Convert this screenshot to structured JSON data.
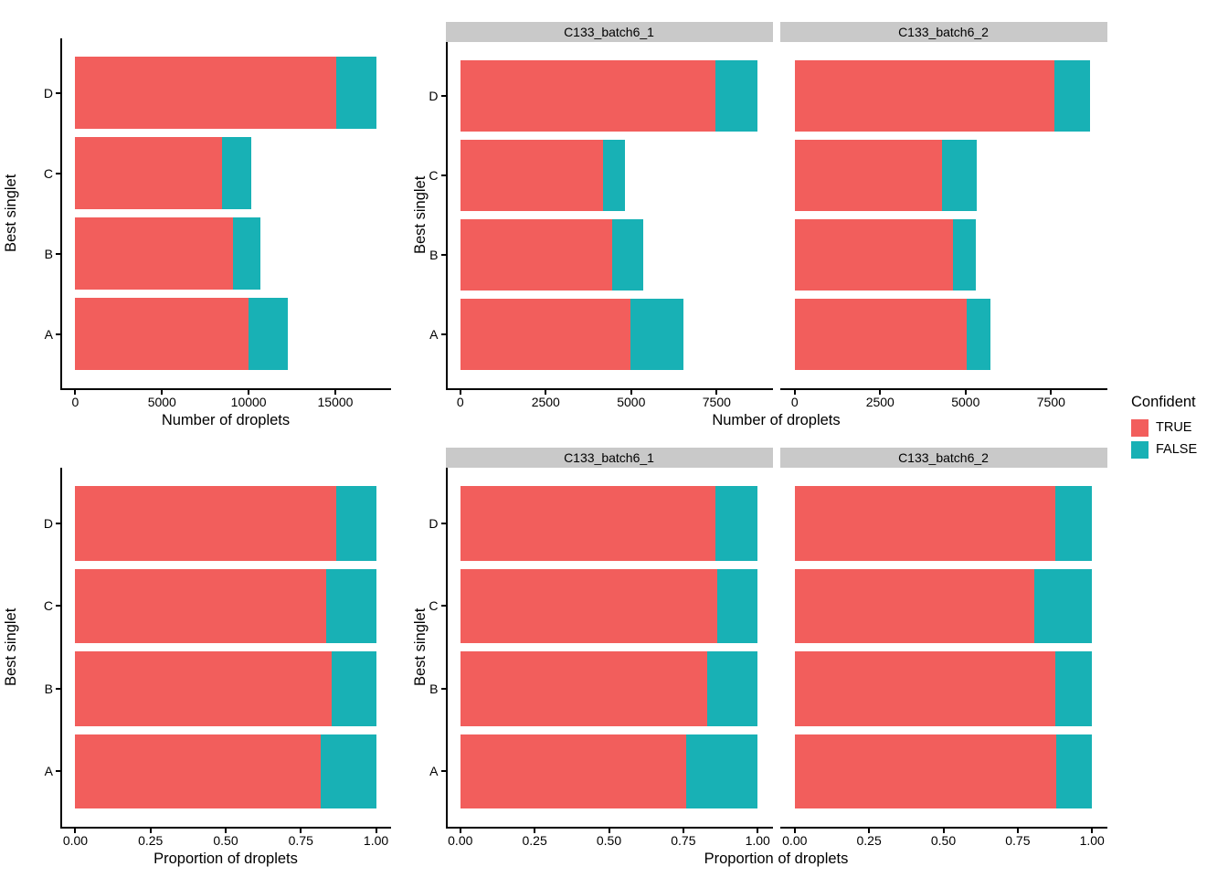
{
  "figure": {
    "background": "#FFFFFF",
    "colors": {
      "TRUE": "#F25E5C",
      "FALSE": "#18B1B5",
      "strip_bg": "#C9C9C9",
      "axis": "#000000"
    },
    "legend": {
      "title": "Confident",
      "position": "right",
      "entries": [
        {
          "label": "TRUE",
          "color": "#F25E5C"
        },
        {
          "label": "FALSE",
          "color": "#18B1B5"
        }
      ]
    }
  },
  "chart_data": [
    {
      "type": "bar",
      "orientation": "horizontal",
      "stacked": true,
      "xlabel": "Number of droplets",
      "ylabel": "Best singlet",
      "categories": [
        "D",
        "C",
        "B",
        "A"
      ],
      "category_order": "top-to-bottom",
      "x_ticks": [
        0,
        5000,
        10000,
        15000
      ],
      "x_tick_labels": [
        "0",
        "5000",
        "10000",
        "15000"
      ],
      "xlim": [
        0,
        17350
      ],
      "grid": false,
      "facets": [
        {
          "label": null,
          "series": [
            {
              "name": "TRUE",
              "values": [
                15050,
                8470,
                9090,
                9990
              ]
            },
            {
              "name": "FALSE",
              "values": [
                2300,
                1690,
                1570,
                2270
              ]
            }
          ]
        }
      ]
    },
    {
      "type": "bar",
      "orientation": "horizontal",
      "stacked": true,
      "xlabel": "Number of droplets",
      "ylabel": "Best singlet",
      "categories": [
        "D",
        "C",
        "B",
        "A"
      ],
      "category_order": "top-to-bottom",
      "x_ticks": [
        0,
        2500,
        5000,
        7500
      ],
      "x_tick_labels": [
        "0",
        "2500",
        "5000",
        "7500"
      ],
      "xlim": [
        0,
        8700
      ],
      "grid": false,
      "facets": [
        {
          "label": "C133_batch6_1",
          "series": [
            {
              "name": "TRUE",
              "values": [
                7460,
                4170,
                4450,
                4970
              ]
            },
            {
              "name": "FALSE",
              "values": [
                1240,
                660,
                910,
                1570
              ]
            }
          ]
        },
        {
          "label": "C133_batch6_2",
          "series": [
            {
              "name": "TRUE",
              "values": [
                7590,
                4300,
                4640,
                5020
              ]
            },
            {
              "name": "FALSE",
              "values": [
                1060,
                1030,
                660,
                700
              ]
            }
          ]
        }
      ]
    },
    {
      "type": "bar",
      "orientation": "horizontal",
      "stacked": true,
      "xlabel": "Proportion of droplets",
      "ylabel": "Best singlet",
      "categories": [
        "D",
        "C",
        "B",
        "A"
      ],
      "category_order": "top-to-bottom",
      "x_ticks": [
        0,
        0.25,
        0.5,
        0.75,
        1
      ],
      "x_tick_labels": [
        "0.00",
        "0.25",
        "0.50",
        "0.75",
        "1.00"
      ],
      "xlim": [
        0,
        1
      ],
      "grid": false,
      "facets": [
        {
          "label": null,
          "series": [
            {
              "name": "TRUE",
              "values": [
                0.867,
                0.834,
                0.853,
                0.815
              ]
            },
            {
              "name": "FALSE",
              "values": [
                0.133,
                0.166,
                0.147,
                0.185
              ]
            }
          ]
        }
      ]
    },
    {
      "type": "bar",
      "orientation": "horizontal",
      "stacked": true,
      "xlabel": "Proportion of droplets",
      "ylabel": "Best singlet",
      "categories": [
        "D",
        "C",
        "B",
        "A"
      ],
      "category_order": "top-to-bottom",
      "x_ticks": [
        0,
        0.25,
        0.5,
        0.75,
        1
      ],
      "x_tick_labels": [
        "0.00",
        "0.25",
        "0.50",
        "0.75",
        "1.00"
      ],
      "xlim": [
        0,
        1
      ],
      "grid": false,
      "facets": [
        {
          "label": "C133_batch6_1",
          "series": [
            {
              "name": "TRUE",
              "values": [
                0.857,
                0.863,
                0.83,
                0.76
              ]
            },
            {
              "name": "FALSE",
              "values": [
                0.143,
                0.137,
                0.17,
                0.24
              ]
            }
          ]
        },
        {
          "label": "C133_batch6_2",
          "series": [
            {
              "name": "TRUE",
              "values": [
                0.877,
                0.807,
                0.875,
                0.878
              ]
            },
            {
              "name": "FALSE",
              "values": [
                0.123,
                0.193,
                0.125,
                0.122
              ]
            }
          ]
        }
      ]
    }
  ]
}
